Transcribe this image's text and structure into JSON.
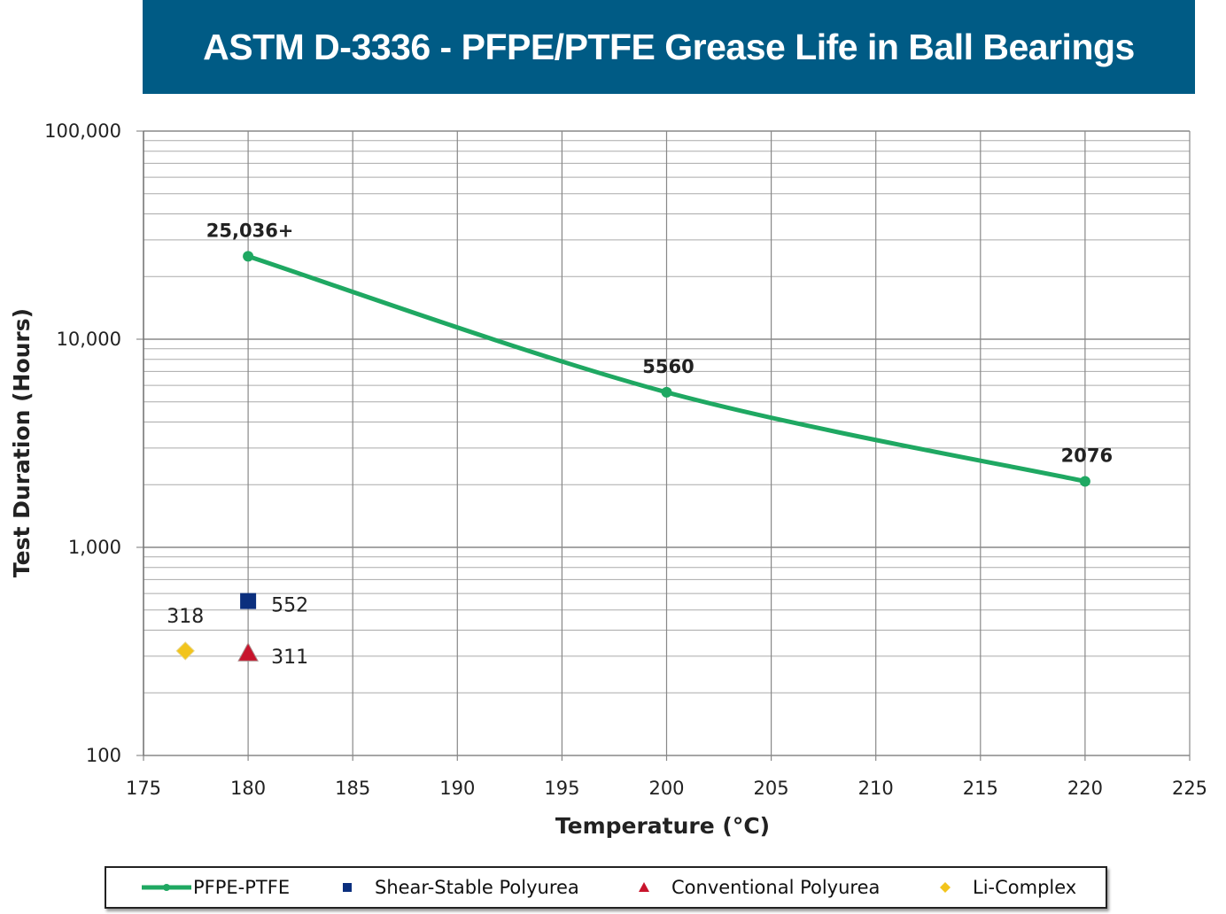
{
  "chart_data": {
    "type": "line",
    "title": "ASTM D-3336 - PFPE/PTFE Grease Life in Ball Bearings",
    "xlabel": "Temperature (°C)",
    "xlabel_main": "Temperature (",
    "xlabel_sup": "o",
    "xlabel_end": "C)",
    "ylabel": "Test Duration (Hours)",
    "xlim": [
      175,
      225
    ],
    "ylim": [
      100,
      100000
    ],
    "yscale": "log",
    "grid": true,
    "legend_position": "bottom",
    "x_ticks": [
      "175",
      "180",
      "185",
      "190",
      "195",
      "200",
      "205",
      "210",
      "215",
      "220",
      "225"
    ],
    "y_ticks": [
      {
        "value": 100,
        "label": "100"
      },
      {
        "value": 1000,
        "label": "1,000"
      },
      {
        "value": 10000,
        "label": "10,000"
      },
      {
        "value": 100000,
        "label": "100,000"
      }
    ],
    "series": [
      {
        "name": "PFPE-PTFE",
        "color": "#1fa862",
        "marker": "circle",
        "points": [
          {
            "x": 180,
            "y": 25036,
            "label": "25,036+"
          },
          {
            "x": 200,
            "y": 5560,
            "label": "5560"
          },
          {
            "x": 220,
            "y": 2076,
            "label": "2076"
          }
        ]
      },
      {
        "name": "Shear-Stable Polyurea",
        "color": "#0b2f7e",
        "marker": "square",
        "points": [
          {
            "x": 180,
            "y": 552,
            "label": "552"
          }
        ]
      },
      {
        "name": "Conventional Polyurea",
        "color": "#c8142c",
        "marker": "triangle",
        "points": [
          {
            "x": 180,
            "y": 311,
            "label": "311"
          }
        ]
      },
      {
        "name": "Li-Complex",
        "color": "#f2c41c",
        "marker": "diamond",
        "points": [
          {
            "x": 177,
            "y": 318,
            "label": "318"
          }
        ]
      }
    ]
  }
}
